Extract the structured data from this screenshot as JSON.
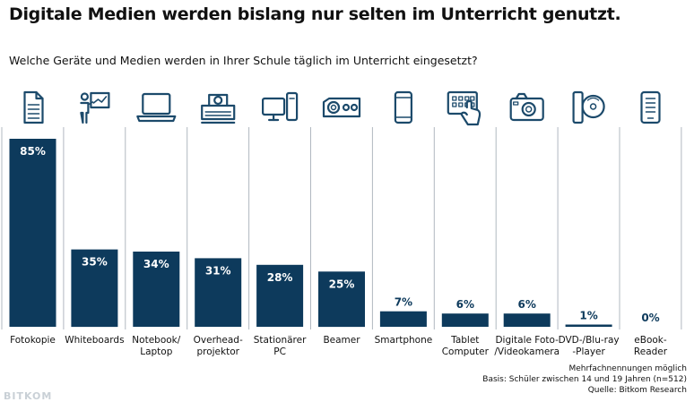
{
  "title": "Digitale Medien werden bislang nur selten im Unterricht genutzt.",
  "subtitle": "Welche Geräte und Medien werden in Ihrer Schule täglich im Unterricht eingesetzt?",
  "notes": {
    "line1": "Mehrfachnennungen möglich",
    "line2": "Basis: Schüler zwischen 14 und 19 Jahren (n=512)",
    "line3": "Quelle: Bitkom Research"
  },
  "logo_text": "BITKOM",
  "colors": {
    "bar": "#0d3a5c",
    "icon": "#1c4a6b",
    "divider": "#b0b8c0",
    "bar_label_inside": "#ffffff",
    "bar_label_outside": "#0d3a5c"
  },
  "chart_data": {
    "type": "bar",
    "categories": [
      "Fotokopie",
      "Whiteboards",
      "Notebook/\nLaptop",
      "Overhead-\nprojektor",
      "Stationärer\nPC",
      "Beamer",
      "Smartphone",
      "Tablet\nComputer",
      "Digitale Foto-\n/Videokamera",
      "DVD-/Blu-ray\n-Player",
      "eBook-\nReader"
    ],
    "values": [
      85,
      35,
      34,
      31,
      28,
      25,
      7,
      6,
      6,
      1,
      0
    ],
    "value_labels": [
      "85%",
      "35%",
      "34%",
      "31%",
      "28%",
      "25%",
      "7%",
      "6%",
      "6%",
      "1%",
      "0%"
    ],
    "icons": [
      "document-icon",
      "whiteboard-icon",
      "laptop-icon",
      "overhead-projector-icon",
      "desktop-pc-icon",
      "beamer-icon",
      "smartphone-icon",
      "tablet-icon",
      "camera-icon",
      "dvd-player-icon",
      "ebook-reader-icon"
    ],
    "ylim": [
      0,
      100
    ],
    "grid": false,
    "legend": "none"
  }
}
